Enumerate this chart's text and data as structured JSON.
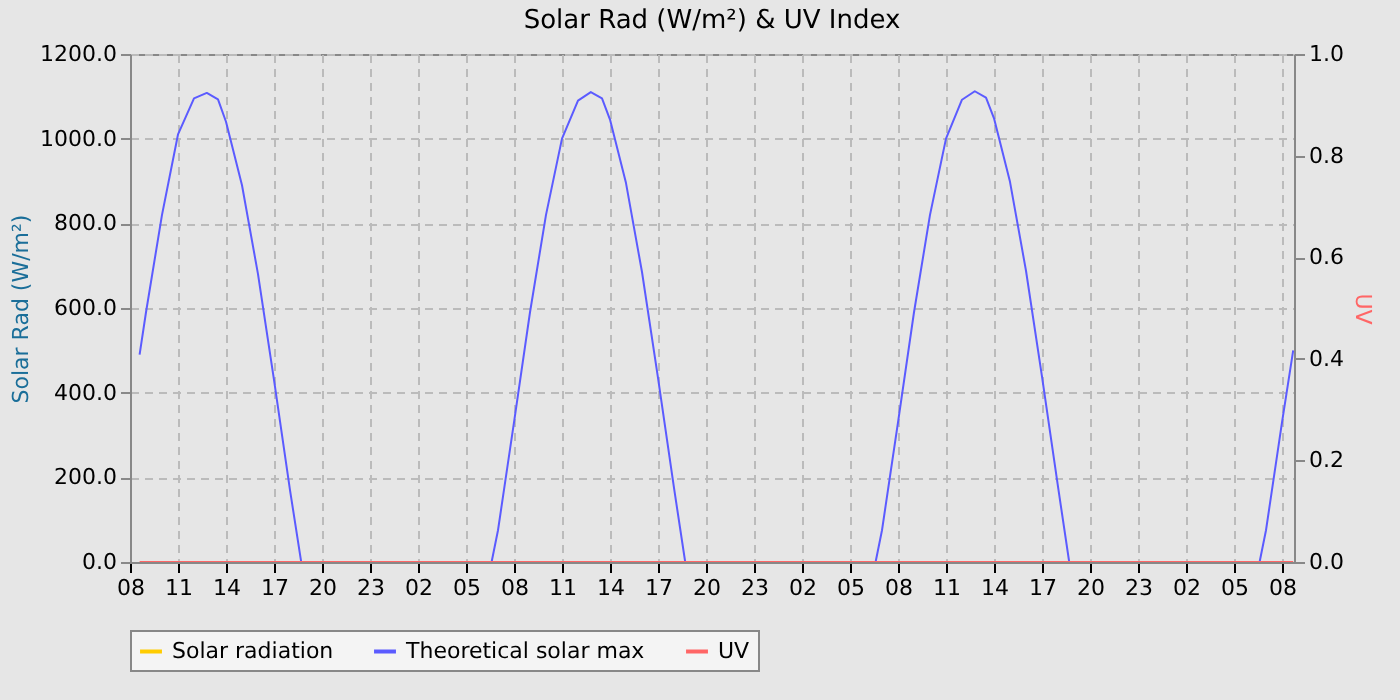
{
  "chart_data": {
    "type": "line",
    "title": "Solar Rad (W/m²) &  UV Index",
    "ylabel": "Solar Rad (W/m²)",
    "y2label": "UV",
    "xlim": [
      "--01-01T08:00",
      "--01-04T08:45"
    ],
    "xticks": [
      {
        "value": "--01-01T08:00",
        "label": "08"
      },
      {
        "value": "--01-01T11:00",
        "label": "11"
      },
      {
        "value": "--01-01T14:00",
        "label": "14"
      },
      {
        "value": "--01-01T17:00",
        "label": "17"
      },
      {
        "value": "--01-01T20:00",
        "label": "20"
      },
      {
        "value": "--01-01T23:00",
        "label": "23"
      },
      {
        "value": "--01-02T02:00",
        "label": "02"
      },
      {
        "value": "--01-02T05:00",
        "label": "05"
      },
      {
        "value": "--01-02T08:00",
        "label": "08"
      },
      {
        "value": "--01-02T11:00",
        "label": "11"
      },
      {
        "value": "--01-02T14:00",
        "label": "14"
      },
      {
        "value": "--01-02T17:00",
        "label": "17"
      },
      {
        "value": "--01-02T20:00",
        "label": "20"
      },
      {
        "value": "--01-02T23:00",
        "label": "23"
      },
      {
        "value": "--01-03T02:00",
        "label": "02"
      },
      {
        "value": "--01-03T05:00",
        "label": "05"
      },
      {
        "value": "--01-03T08:00",
        "label": "08"
      },
      {
        "value": "--01-03T11:00",
        "label": "11"
      },
      {
        "value": "--01-03T14:00",
        "label": "14"
      },
      {
        "value": "--01-03T17:00",
        "label": "17"
      },
      {
        "value": "--01-03T20:00",
        "label": "20"
      },
      {
        "value": "--01-03T23:00",
        "label": "23"
      },
      {
        "value": "--01-04T02:00",
        "label": "02"
      },
      {
        "value": "--01-04T05:00",
        "label": "05"
      },
      {
        "value": "--01-04T08:00",
        "label": "08"
      }
    ],
    "ylim": [
      0,
      1200
    ],
    "yticks": [
      {
        "value": 0,
        "label": "0.0"
      },
      {
        "value": 200,
        "label": "200.0"
      },
      {
        "value": 400,
        "label": "400.0"
      },
      {
        "value": 600,
        "label": "600.0"
      },
      {
        "value": 800,
        "label": "800.0"
      },
      {
        "value": 1000,
        "label": "1000.0"
      },
      {
        "value": 1200,
        "label": "1200.0"
      }
    ],
    "y2lim": [
      0,
      1
    ],
    "y2ticks": [
      {
        "value": 0,
        "label": "0.0"
      },
      {
        "value": 0.2,
        "label": "0.2"
      },
      {
        "value": 0.4,
        "label": "0.4"
      },
      {
        "value": 0.6,
        "label": "0.6"
      },
      {
        "value": 0.8,
        "label": "0.8"
      },
      {
        "value": 1,
        "label": "1.0"
      }
    ],
    "grid": true,
    "legend": "bottom",
    "line_style": "solid",
    "series": [
      {
        "name": "Solar radiation",
        "color": "#ffcc00"
      },
      {
        "name": "Theoretical solar max",
        "color": "#5b5bff",
        "x": [
          "--01-01T08:36",
          "--01-01T09:00",
          "--01-01T10:00",
          "--01-01T11:00",
          "--01-01T12:00",
          "--01-01T12:48",
          "--01-01T13:30",
          "--01-01T14:00",
          "--01-01T15:00",
          "--01-01T16:00",
          "--01-01T17:00",
          "--01-01T18:00",
          "--01-01T18:42",
          "--01-02T06:36",
          "--01-02T07:00",
          "--01-02T08:00",
          "--01-02T09:00",
          "--01-02T10:00",
          "--01-02T11:00",
          "--01-02T12:00",
          "--01-02T12:48",
          "--01-02T13:30",
          "--01-02T14:00",
          "--01-02T15:00",
          "--01-02T16:00",
          "--01-02T17:00",
          "--01-02T18:00",
          "--01-02T18:42",
          "--01-03T06:36",
          "--01-03T07:00",
          "--01-03T08:00",
          "--01-03T09:00",
          "--01-03T10:00",
          "--01-03T11:00",
          "--01-03T12:00",
          "--01-03T12:48",
          "--01-03T13:30",
          "--01-03T14:00",
          "--01-03T15:00",
          "--01-03T16:00",
          "--01-03T17:00",
          "--01-03T18:00",
          "--01-03T18:42",
          "--01-04T06:36",
          "--01-04T07:00",
          "--01-04T08:00",
          "--01-04T08:42"
        ],
        "values": [
          490,
          590,
          820,
          1010,
          1095,
          1108,
          1093,
          1040,
          890,
          680,
          430,
          170,
          0,
          0,
          75,
          330,
          590,
          820,
          1000,
          1090,
          1110,
          1095,
          1045,
          895,
          685,
          435,
          175,
          0,
          0,
          75,
          330,
          590,
          820,
          1000,
          1092,
          1112,
          1097,
          1048,
          898,
          688,
          438,
          178,
          0,
          0,
          75,
          330,
          500
        ]
      },
      {
        "name": "UV",
        "color": "#ff6666",
        "axis": "y2",
        "x": [
          "--01-01T08:36",
          "--01-04T08:42"
        ],
        "values": [
          0,
          0
        ]
      }
    ]
  }
}
